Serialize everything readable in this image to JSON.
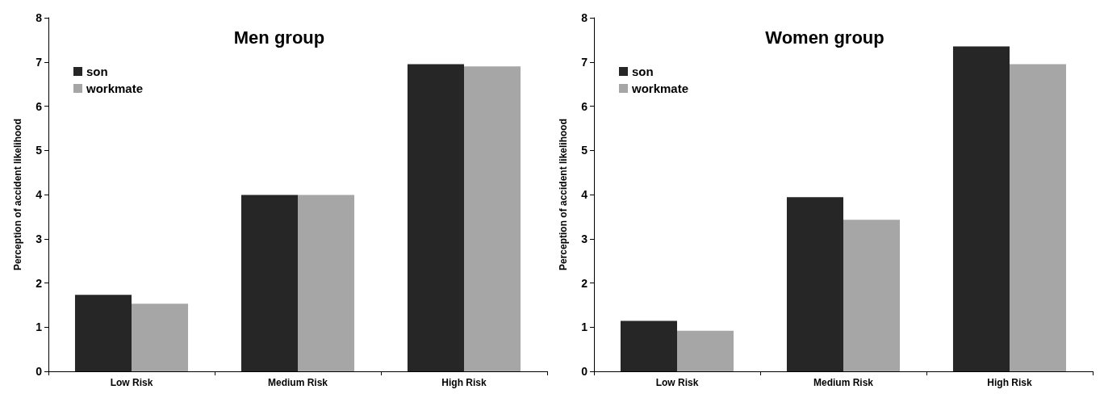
{
  "chart_data": [
    {
      "type": "bar",
      "title": "Men group",
      "ylabel": "Perception of accident likelihood",
      "categories": [
        "Low Risk",
        "Medium Risk",
        "High Risk"
      ],
      "series": [
        {
          "name": "son",
          "color": "#262626",
          "values": [
            1.73,
            3.99,
            6.95
          ]
        },
        {
          "name": "workmate",
          "color": "#a6a6a6",
          "values": [
            1.53,
            3.99,
            6.9
          ]
        }
      ],
      "ylim": [
        0,
        8
      ],
      "yticks": [
        0,
        1,
        2,
        3,
        4,
        5,
        6,
        7,
        8
      ],
      "grid": false,
      "legend": "top left"
    },
    {
      "type": "bar",
      "title": "Women group",
      "ylabel": "Perception of accident likelihood",
      "categories": [
        "Low Risk",
        "Medium Risk",
        "High Risk"
      ],
      "series": [
        {
          "name": "son",
          "color": "#262626",
          "values": [
            1.14,
            3.94,
            7.35
          ]
        },
        {
          "name": "workmate",
          "color": "#a6a6a6",
          "values": [
            0.92,
            3.43,
            6.95
          ]
        }
      ],
      "ylim": [
        0,
        8
      ],
      "yticks": [
        0,
        1,
        2,
        3,
        4,
        5,
        6,
        7,
        8
      ],
      "grid": false,
      "legend": "top left"
    }
  ]
}
